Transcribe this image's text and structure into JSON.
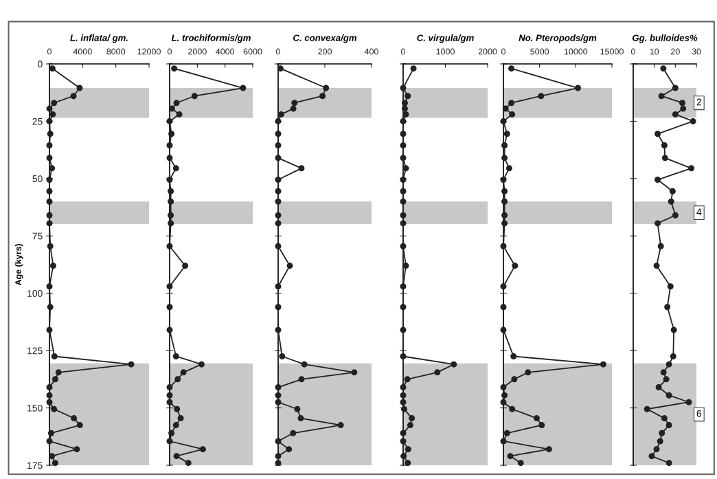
{
  "chart_data": [
    {
      "type": "line",
      "orientation": "horizontal",
      "title": "L. inflata/ gm.",
      "ylabel": "Age (kyrs)",
      "color": "#222222",
      "marker": "circle",
      "xlim": [
        0,
        12000
      ],
      "xticks": [
        0,
        4000,
        8000,
        12000
      ],
      "ylim": [
        175,
        0
      ],
      "yticks": [
        0,
        25,
        50,
        75,
        100,
        125,
        150,
        175
      ],
      "x": [
        2,
        10.5,
        14,
        17,
        19.5,
        22,
        25,
        30.5,
        35.5,
        41,
        45.5,
        50.5,
        55.5,
        60,
        66,
        69.5,
        79.5,
        88,
        97,
        106,
        116,
        127.5,
        131,
        134.5,
        137.5,
        141,
        144.5,
        147.5,
        150.5,
        154.5,
        157.5,
        161,
        164.5,
        168,
        171,
        174
      ],
      "values": [
        360,
        3640,
        2900,
        550,
        0,
        400,
        0,
        100,
        0,
        0,
        300,
        0,
        0,
        0,
        0,
        0,
        100,
        450,
        0,
        100,
        0,
        600,
        9850,
        1100,
        700,
        0,
        0,
        0,
        550,
        2950,
        3670,
        200,
        0,
        3300,
        300,
        700
      ],
      "bands": [
        {
          "axis": "y",
          "from": 10.5,
          "to": 23.5,
          "color": "#c8c8c8"
        },
        {
          "axis": "y",
          "from": 60,
          "to": 69.8,
          "color": "#c8c8c8"
        },
        {
          "axis": "y",
          "from": 130.6,
          "to": 175,
          "color": "#c8c8c8"
        }
      ]
    },
    {
      "type": "line",
      "orientation": "horizontal",
      "title": "L. trochiformis/gm",
      "color": "#222222",
      "marker": "circle",
      "xlim": [
        0,
        6000
      ],
      "xticks": [
        0,
        2000,
        4000,
        6000
      ],
      "ylim": [
        175,
        0
      ],
      "yticks": [
        0,
        25,
        50,
        75,
        100,
        125,
        150,
        175
      ],
      "tick_labels": "x",
      "x": [
        2,
        10.5,
        14,
        17,
        19.5,
        22,
        25,
        30.5,
        35.5,
        41,
        45.5,
        50.5,
        55.5,
        60,
        66,
        69.5,
        79.5,
        88,
        97,
        106,
        116,
        127.5,
        131,
        134.5,
        137.5,
        141,
        144.5,
        147.5,
        150.5,
        154.5,
        157.5,
        161,
        164.5,
        168,
        171,
        174
      ],
      "values": [
        330,
        5300,
        1800,
        500,
        170,
        700,
        0,
        130,
        0,
        0,
        460,
        0,
        80,
        80,
        80,
        80,
        0,
        1120,
        0,
        0,
        0,
        460,
        2300,
        1000,
        580,
        0,
        0,
        0,
        530,
        800,
        460,
        130,
        0,
        2400,
        500,
        1350
      ],
      "bands": [
        {
          "axis": "y",
          "from": 10.5,
          "to": 23.5,
          "color": "#c8c8c8"
        },
        {
          "axis": "y",
          "from": 60,
          "to": 69.8,
          "color": "#c8c8c8"
        },
        {
          "axis": "y",
          "from": 130.6,
          "to": 175,
          "color": "#c8c8c8"
        }
      ]
    },
    {
      "type": "line",
      "orientation": "horizontal",
      "title": "C. convexa/gm",
      "color": "#222222",
      "marker": "circle",
      "xlim": [
        0,
        400
      ],
      "xticks": [
        0,
        200,
        400
      ],
      "ylim": [
        175,
        0
      ],
      "yticks": [
        0,
        25,
        50,
        75,
        100,
        125,
        150,
        175
      ],
      "tick_labels": "x",
      "x": [
        2,
        10.5,
        14,
        17,
        19.5,
        22,
        25,
        30.5,
        35.5,
        41,
        45.5,
        50.5,
        55.5,
        60,
        66,
        69.5,
        79.5,
        88,
        97,
        106,
        116,
        127.5,
        131,
        134.5,
        137.5,
        141,
        144.5,
        147.5,
        150.5,
        154.5,
        157.5,
        161,
        164.5,
        168,
        171,
        174
      ],
      "values": [
        10,
        205,
        190,
        70,
        65,
        13,
        0,
        0,
        0,
        0,
        100,
        0,
        0,
        0,
        0,
        0,
        0,
        50,
        0,
        0,
        0,
        17,
        112,
        326,
        100,
        0,
        0,
        0,
        82,
        97,
        268,
        64,
        0,
        46,
        0,
        0
      ],
      "bands": [
        {
          "axis": "y",
          "from": 10.5,
          "to": 23.5,
          "color": "#c8c8c8"
        },
        {
          "axis": "y",
          "from": 60,
          "to": 69.8,
          "color": "#c8c8c8"
        },
        {
          "axis": "y",
          "from": 130.6,
          "to": 175,
          "color": "#c8c8c8"
        }
      ]
    },
    {
      "type": "line",
      "orientation": "horizontal",
      "title": "C. virgula/gm",
      "color": "#222222",
      "marker": "circle",
      "xlim": [
        0,
        2000
      ],
      "xticks": [
        0,
        1000,
        2000
      ],
      "ylim": [
        175,
        0
      ],
      "yticks": [
        0,
        25,
        50,
        75,
        100,
        125,
        150,
        175
      ],
      "tick_labels": "x",
      "x": [
        2,
        10.5,
        14,
        17,
        19.5,
        22,
        25,
        30.5,
        35.5,
        41,
        45.5,
        50.5,
        55.5,
        60,
        66,
        69.5,
        79.5,
        88,
        97,
        106,
        116,
        127.5,
        131,
        134.5,
        137.5,
        141,
        144.5,
        147.5,
        150.5,
        154.5,
        157.5,
        161,
        164.5,
        168,
        171,
        174
      ],
      "values": [
        245,
        0,
        110,
        40,
        40,
        65,
        0,
        0,
        0,
        0,
        65,
        0,
        0,
        0,
        0,
        0,
        0,
        65,
        0,
        0,
        0,
        0,
        1200,
        810,
        100,
        0,
        0,
        0,
        25,
        205,
        170,
        0,
        0,
        120,
        10,
        110
      ],
      "bands": [
        {
          "axis": "y",
          "from": 10.5,
          "to": 23.5,
          "color": "#c8c8c8"
        },
        {
          "axis": "y",
          "from": 60,
          "to": 69.8,
          "color": "#c8c8c8"
        },
        {
          "axis": "y",
          "from": 130.6,
          "to": 175,
          "color": "#c8c8c8"
        }
      ]
    },
    {
      "type": "line",
      "orientation": "horizontal",
      "title": "No. Pteropods/gm",
      "color": "#222222",
      "marker": "circle",
      "xlim": [
        0,
        15000
      ],
      "xticks": [
        0,
        5000,
        10000,
        15000
      ],
      "ylim": [
        175,
        0
      ],
      "yticks": [
        0,
        25,
        50,
        75,
        100,
        125,
        150,
        175
      ],
      "tick_labels": "x",
      "x": [
        2,
        10.5,
        14,
        17,
        19.5,
        22,
        25,
        30.5,
        35.5,
        41,
        45.5,
        50.5,
        55.5,
        60,
        66,
        69.5,
        79.5,
        88,
        97,
        106,
        116,
        127.5,
        131,
        134.5,
        137.5,
        141,
        144.5,
        147.5,
        150.5,
        154.5,
        157.5,
        161,
        164.5,
        168,
        171,
        174
      ],
      "values": [
        1100,
        10300,
        5200,
        1100,
        300,
        1200,
        0,
        500,
        150,
        150,
        800,
        0,
        150,
        150,
        150,
        150,
        0,
        1600,
        0,
        0,
        0,
        1400,
        13800,
        3400,
        1500,
        0,
        150,
        0,
        1200,
        4600,
        5300,
        500,
        0,
        6300,
        950,
        2400
      ],
      "bands": [
        {
          "axis": "y",
          "from": 10.5,
          "to": 23.5,
          "color": "#c8c8c8"
        },
        {
          "axis": "y",
          "from": 60,
          "to": 69.8,
          "color": "#c8c8c8"
        },
        {
          "axis": "y",
          "from": 130.6,
          "to": 175,
          "color": "#c8c8c8"
        }
      ]
    },
    {
      "type": "line",
      "orientation": "horizontal",
      "title": "Gg. bulloides%",
      "color": "#222222",
      "marker": "circle",
      "xlim": [
        0,
        30
      ],
      "xticks": [
        0,
        10,
        20,
        30
      ],
      "ylim": [
        175,
        0
      ],
      "yticks": [
        0,
        25,
        50,
        75,
        100,
        125,
        150,
        175
      ],
      "tick_labels": "x",
      "x": [
        2,
        10.5,
        14,
        17,
        19.5,
        22,
        25,
        30.5,
        35.5,
        41,
        45.5,
        50.5,
        55.5,
        60,
        66,
        69.5,
        79.5,
        88,
        97,
        106,
        116,
        127.5,
        131,
        134.5,
        137.5,
        141,
        144.5,
        147.5,
        150.5,
        154.5,
        157.5,
        161,
        164.5,
        168,
        171,
        174
      ],
      "values": [
        14.3,
        20,
        13.4,
        23.3,
        23.7,
        20,
        28.4,
        11.6,
        14.8,
        15.1,
        27.6,
        11.6,
        18.7,
        18,
        20,
        11.6,
        13.1,
        11.1,
        17.7,
        16.2,
        19.3,
        19,
        17,
        14.4,
        15.7,
        12.1,
        17,
        26.4,
        6.6,
        14.8,
        17,
        13.6,
        12.8,
        11.1,
        8.8,
        17
      ],
      "bands": [
        {
          "axis": "y",
          "from": 10.5,
          "to": 23.5,
          "color": "#c8c8c8",
          "label": "2"
        },
        {
          "axis": "y",
          "from": 60,
          "to": 69.8,
          "color": "#c8c8c8",
          "label": "4"
        },
        {
          "axis": "y",
          "from": 130.6,
          "to": 175,
          "color": "#c8c8c8",
          "label": "6"
        }
      ]
    }
  ]
}
